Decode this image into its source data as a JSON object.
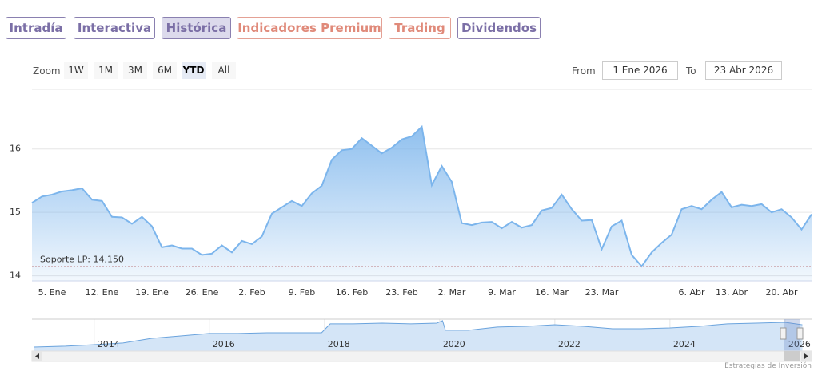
{
  "tabs": [
    "Intradía",
    "Interactiva",
    "Histórica",
    "Indicadores Premium",
    "Trading",
    "Dividendos"
  ],
  "active_tab": 2,
  "range_selector": {
    "label": "Zoom",
    "buttons": [
      "1W",
      "1M",
      "3M",
      "6M",
      "YTD",
      "All"
    ],
    "selected": 4,
    "from_label": "From",
    "from": "1 Ene 2026",
    "to_label": "To",
    "to": "23 Abr 2026"
  },
  "credit": "Estrategias de Inversión",
  "chart_data": {
    "type": "area",
    "color": "#7cb5ec",
    "categories": [
      null,
      null,
      "5. Ene",
      null,
      null,
      null,
      null,
      "12. Ene",
      null,
      null,
      null,
      null,
      "19. Ene",
      null,
      null,
      null,
      null,
      "26. Ene",
      null,
      null,
      null,
      null,
      "2. Feb",
      null,
      null,
      null,
      null,
      "9. Feb",
      null,
      null,
      null,
      null,
      "16. Feb",
      null,
      null,
      null,
      null,
      "23. Feb",
      null,
      null,
      null,
      null,
      "2. Mar",
      null,
      null,
      null,
      null,
      "9. Mar",
      null,
      null,
      null,
      null,
      "16. Mar",
      null,
      null,
      null,
      null,
      "23. Mar",
      null,
      null,
      null,
      null,
      null,
      null,
      null,
      null,
      "6. Abr",
      null,
      null,
      null,
      "13. Abr",
      null,
      null,
      null,
      null,
      "20. Abr",
      null,
      null,
      null
    ],
    "values": [
      15.15,
      15.25,
      15.28,
      15.33,
      15.35,
      15.38,
      15.2,
      15.18,
      14.93,
      14.92,
      14.82,
      14.93,
      14.78,
      14.45,
      14.48,
      14.43,
      14.43,
      14.33,
      14.35,
      14.48,
      14.37,
      14.55,
      14.5,
      14.62,
      14.98,
      15.08,
      15.18,
      15.1,
      15.3,
      15.42,
      15.83,
      15.98,
      16.0,
      16.17,
      16.05,
      15.93,
      16.02,
      16.15,
      16.2,
      16.35,
      15.43,
      15.73,
      15.48,
      14.83,
      14.8,
      14.84,
      14.85,
      14.75,
      14.85,
      14.76,
      14.8,
      15.03,
      15.07,
      15.28,
      15.05,
      14.87,
      14.88,
      14.42,
      14.78,
      14.87,
      14.33,
      14.15,
      14.37,
      14.52,
      14.65,
      15.05,
      15.1,
      15.05,
      15.2,
      15.32,
      15.08,
      15.12,
      15.1,
      15.13,
      15.0,
      15.05,
      14.92,
      14.73,
      14.97
    ],
    "ylim": [
      13.92,
      16.94
    ],
    "yticks": [
      14,
      15,
      16
    ],
    "grid": true,
    "plot_line": {
      "value": 14.15,
      "label": "Soporte LP: 14,150",
      "color": "#8b0000"
    },
    "navigator": {
      "color": "#6aa3dd",
      "x": [
        2012.95,
        2013.5,
        2014,
        2014.5,
        2015,
        2015.5,
        2016,
        2016.5,
        2017,
        2017.5,
        2017.95,
        2018.1,
        2018.5,
        2019,
        2019.5,
        2019.95,
        2020.05,
        2020.1,
        2020.5,
        2021,
        2021.5,
        2022,
        2022.5,
        2023,
        2023.5,
        2024,
        2024.5,
        2025,
        2025.5,
        2026,
        2026.3
      ],
      "values": [
        2.1,
        2.6,
        3.4,
        4.3,
        6.8,
        8.1,
        9.4,
        9.4,
        9.8,
        9.8,
        9.8,
        14.5,
        14.5,
        14.9,
        14.5,
        14.9,
        16.2,
        11.1,
        11.1,
        12.8,
        13.2,
        14.0,
        13.2,
        11.9,
        11.9,
        12.3,
        13.2,
        14.5,
        14.9,
        15.3,
        14.0
      ],
      "xlim": [
        2012.92,
        2026.46
      ],
      "xticks": [
        2014,
        2016,
        2018,
        2020,
        2022,
        2024,
        2026
      ],
      "ylim": [
        0,
        17
      ]
    }
  }
}
